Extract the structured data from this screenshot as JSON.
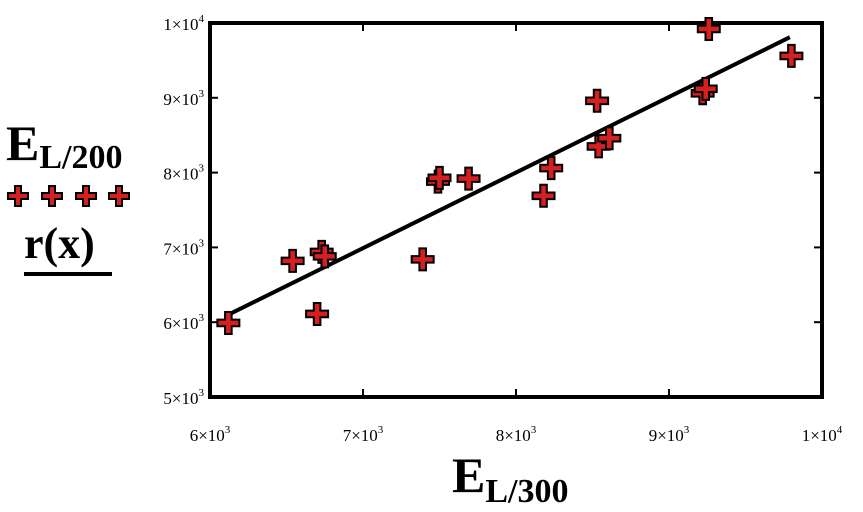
{
  "chart_data": {
    "type": "scatter",
    "xlabel": {
      "main": "E",
      "sub": "L/300"
    },
    "ylabel": {
      "main": "E",
      "sub": "L/200"
    },
    "legend": {
      "label": "r(x)",
      "placement": "left"
    },
    "xlim": [
      6000,
      10000
    ],
    "ylim": [
      5000,
      10000
    ],
    "x_ticks": [
      {
        "value": 6000,
        "mantissa": "6",
        "exp": "3"
      },
      {
        "value": 7000,
        "mantissa": "7",
        "exp": "3"
      },
      {
        "value": 8000,
        "mantissa": "8",
        "exp": "3"
      },
      {
        "value": 9000,
        "mantissa": "9",
        "exp": "3"
      },
      {
        "value": 10000,
        "mantissa": "1",
        "exp": "4"
      }
    ],
    "y_ticks": [
      {
        "value": 5000,
        "mantissa": "5",
        "exp": "3"
      },
      {
        "value": 6000,
        "mantissa": "6",
        "exp": "3"
      },
      {
        "value": 7000,
        "mantissa": "7",
        "exp": "3"
      },
      {
        "value": 8000,
        "mantissa": "8",
        "exp": "3"
      },
      {
        "value": 9000,
        "mantissa": "9",
        "exp": "3"
      },
      {
        "value": 10000,
        "mantissa": "1",
        "exp": "4"
      }
    ],
    "times_sign": "×",
    "base": "10",
    "marker_color": "#d42020",
    "line_color": "#000000",
    "points": [
      {
        "x": 6120,
        "y": 5990
      },
      {
        "x": 6540,
        "y": 6820
      },
      {
        "x": 6700,
        "y": 6110
      },
      {
        "x": 6730,
        "y": 6940
      },
      {
        "x": 6750,
        "y": 6880
      },
      {
        "x": 7390,
        "y": 6840
      },
      {
        "x": 7490,
        "y": 7880
      },
      {
        "x": 7500,
        "y": 7930
      },
      {
        "x": 7690,
        "y": 7920
      },
      {
        "x": 8180,
        "y": 7690
      },
      {
        "x": 8230,
        "y": 8060
      },
      {
        "x": 8540,
        "y": 8350
      },
      {
        "x": 8530,
        "y": 8960
      },
      {
        "x": 8610,
        "y": 8460
      },
      {
        "x": 9220,
        "y": 9060
      },
      {
        "x": 9240,
        "y": 9120
      },
      {
        "x": 9260,
        "y": 9920
      },
      {
        "x": 9800,
        "y": 9560
      }
    ],
    "fit_line": {
      "x": [
        6100,
        9790
      ],
      "y": [
        6080,
        9810
      ]
    },
    "grid": false
  }
}
